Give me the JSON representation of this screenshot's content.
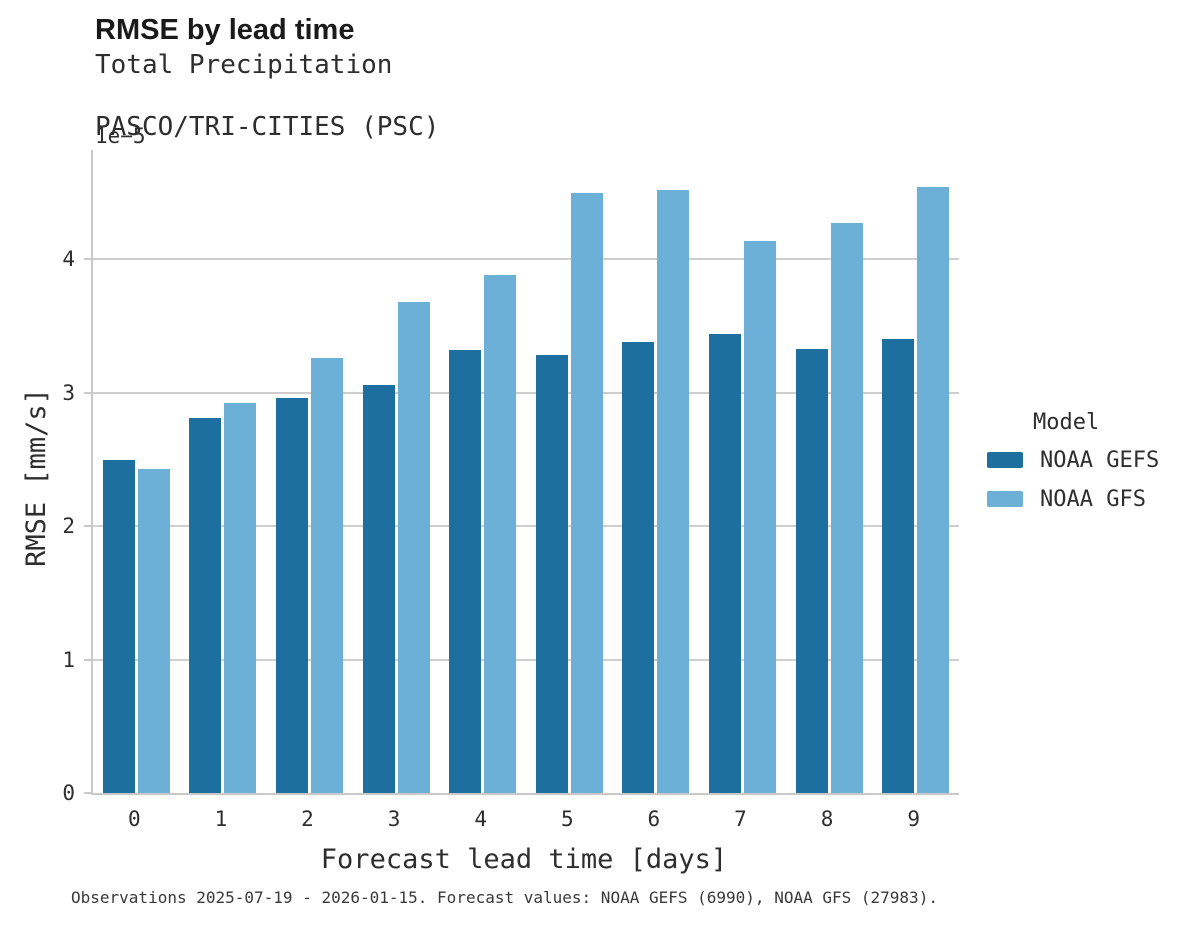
{
  "header": {
    "title": "RMSE by lead time",
    "subtitle1": "Total Precipitation",
    "subtitle2": "PASCO/TRI-CITIES (PSC)"
  },
  "axes": {
    "offset_label": "1e−5",
    "xlabel": "Forecast lead time [days]",
    "ylabel": "RMSE [mm/s]"
  },
  "legend": {
    "title": "Model"
  },
  "footer": {
    "note": "Observations 2025-07-19 - 2026-01-15. Forecast values: NOAA GEFS (6990), NOAA GFS (27983)."
  },
  "colors": {
    "gefs": "#1d6f9f",
    "gfs": "#6cb0d7",
    "grid": "#cecece",
    "spine": "#c9c9c9"
  },
  "chart_data": {
    "type": "bar",
    "title": "RMSE by lead time",
    "subtitle": [
      "Total Precipitation",
      "PASCO/TRI-CITIES (PSC)"
    ],
    "xlabel": "Forecast lead time [days]",
    "ylabel": "RMSE [mm/s]",
    "value_unit": "mm/s",
    "value_multiplier": "1e-5",
    "categories": [
      "0",
      "1",
      "2",
      "3",
      "4",
      "5",
      "6",
      "7",
      "8",
      "9"
    ],
    "series": [
      {
        "name": "NOAA GEFS",
        "color": "#1d6f9f",
        "values": [
          2.5,
          2.81,
          2.96,
          3.06,
          3.32,
          3.28,
          3.38,
          3.44,
          3.33,
          3.4
        ]
      },
      {
        "name": "NOAA GFS",
        "color": "#6cb0d7",
        "values": [
          2.43,
          2.92,
          3.26,
          3.68,
          3.88,
          4.5,
          4.52,
          4.14,
          4.27,
          4.54
        ]
      }
    ],
    "ylim": [
      0,
      4.82
    ],
    "yticks": [
      0,
      1,
      2,
      3,
      4
    ],
    "grid": "horizontal",
    "legend_position": "right",
    "legend_title": "Model"
  }
}
